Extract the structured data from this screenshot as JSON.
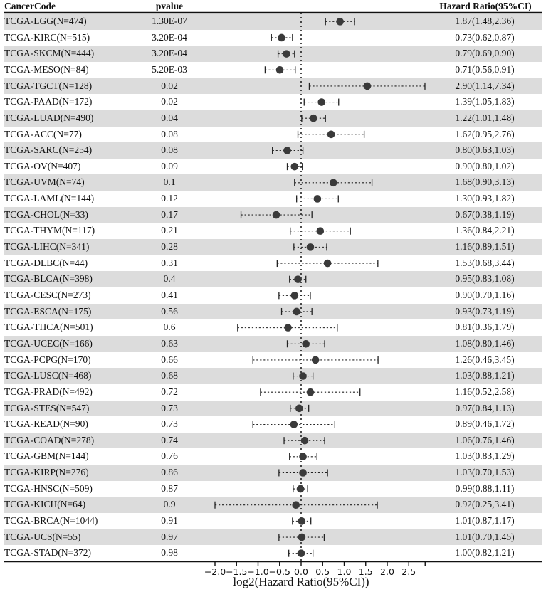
{
  "headers": {
    "cancer_code": "CancerCode",
    "pvalue": "pvalue",
    "hazard_ratio": "Hazard Ratio(95%CI)"
  },
  "axis": {
    "title": "log2(Hazard Ratio(95%CI))",
    "ticks": [
      -2.0,
      -1.5,
      -1.0,
      -0.5,
      0.0,
      0.5,
      1.0,
      1.5,
      2.0,
      2.5,
      2.88
    ],
    "tick_labels": [
      "−2.0",
      "−1.5",
      "−1.0",
      "−0.5",
      "0.0",
      "0.5",
      "1.0",
      "1.5",
      "2.0",
      "2.5",
      ""
    ],
    "reference_line": 0
  },
  "colors": {
    "shade": "#dcdcdc",
    "marker": "#3a3a3a",
    "line": "#222222"
  },
  "chart_data": {
    "type": "forest",
    "title": "",
    "xlabel": "log2(Hazard Ratio(95%CI))",
    "ylabel": "",
    "xlim": [
      -2.0,
      2.9
    ],
    "grid": false,
    "legend": null,
    "categories": [
      "TCGA-LGG(N=474)",
      "TCGA-KIRC(N=515)",
      "TCGA-SKCM(N=444)",
      "TCGA-MESO(N=84)",
      "TCGA-TGCT(N=128)",
      "TCGA-PAAD(N=172)",
      "TCGA-LUAD(N=490)",
      "TCGA-ACC(N=77)",
      "TCGA-SARC(N=254)",
      "TCGA-OV(N=407)",
      "TCGA-UVM(N=74)",
      "TCGA-LAML(N=144)",
      "TCGA-CHOL(N=33)",
      "TCGA-THYM(N=117)",
      "TCGA-LIHC(N=341)",
      "TCGA-DLBC(N=44)",
      "TCGA-BLCA(N=398)",
      "TCGA-CESC(N=273)",
      "TCGA-ESCA(N=175)",
      "TCGA-THCA(N=501)",
      "TCGA-UCEC(N=166)",
      "TCGA-PCPG(N=170)",
      "TCGA-LUSC(N=468)",
      "TCGA-PRAD(N=492)",
      "TCGA-STES(N=547)",
      "TCGA-READ(N=90)",
      "TCGA-COAD(N=278)",
      "TCGA-GBM(N=144)",
      "TCGA-KIRP(N=276)",
      "TCGA-HNSC(N=509)",
      "TCGA-KICH(N=64)",
      "TCGA-BRCA(N=1044)",
      "TCGA-UCS(N=55)",
      "TCGA-STAD(N=372)"
    ],
    "rows": [
      {
        "code": "TCGA-LGG(N=474)",
        "pvalue": "1.30E-07",
        "hr": 1.87,
        "lo": 1.48,
        "hi": 2.36,
        "label": "1.87(1.48,2.36)"
      },
      {
        "code": "TCGA-KIRC(N=515)",
        "pvalue": "3.20E-04",
        "hr": 0.73,
        "lo": 0.62,
        "hi": 0.87,
        "label": "0.73(0.62,0.87)"
      },
      {
        "code": "TCGA-SKCM(N=444)",
        "pvalue": "3.20E-04",
        "hr": 0.79,
        "lo": 0.69,
        "hi": 0.9,
        "label": "0.79(0.69,0.90)"
      },
      {
        "code": "TCGA-MESO(N=84)",
        "pvalue": "5.20E-03",
        "hr": 0.71,
        "lo": 0.56,
        "hi": 0.91,
        "label": "0.71(0.56,0.91)"
      },
      {
        "code": "TCGA-TGCT(N=128)",
        "pvalue": "0.02",
        "hr": 2.9,
        "lo": 1.14,
        "hi": 7.34,
        "label": "2.90(1.14,7.34)"
      },
      {
        "code": "TCGA-PAAD(N=172)",
        "pvalue": "0.02",
        "hr": 1.39,
        "lo": 1.05,
        "hi": 1.83,
        "label": "1.39(1.05,1.83)"
      },
      {
        "code": "TCGA-LUAD(N=490)",
        "pvalue": "0.04",
        "hr": 1.22,
        "lo": 1.01,
        "hi": 1.48,
        "label": "1.22(1.01,1.48)"
      },
      {
        "code": "TCGA-ACC(N=77)",
        "pvalue": "0.08",
        "hr": 1.62,
        "lo": 0.95,
        "hi": 2.76,
        "label": "1.62(0.95,2.76)"
      },
      {
        "code": "TCGA-SARC(N=254)",
        "pvalue": "0.08",
        "hr": 0.8,
        "lo": 0.63,
        "hi": 1.03,
        "label": "0.80(0.63,1.03)"
      },
      {
        "code": "TCGA-OV(N=407)",
        "pvalue": "0.09",
        "hr": 0.9,
        "lo": 0.8,
        "hi": 1.02,
        "label": "0.90(0.80,1.02)"
      },
      {
        "code": "TCGA-UVM(N=74)",
        "pvalue": "0.1",
        "hr": 1.68,
        "lo": 0.9,
        "hi": 3.13,
        "label": "1.68(0.90,3.13)"
      },
      {
        "code": "TCGA-LAML(N=144)",
        "pvalue": "0.12",
        "hr": 1.3,
        "lo": 0.93,
        "hi": 1.82,
        "label": "1.30(0.93,1.82)"
      },
      {
        "code": "TCGA-CHOL(N=33)",
        "pvalue": "0.17",
        "hr": 0.67,
        "lo": 0.38,
        "hi": 1.19,
        "label": "0.67(0.38,1.19)"
      },
      {
        "code": "TCGA-THYM(N=117)",
        "pvalue": "0.21",
        "hr": 1.36,
        "lo": 0.84,
        "hi": 2.21,
        "label": "1.36(0.84,2.21)"
      },
      {
        "code": "TCGA-LIHC(N=341)",
        "pvalue": "0.28",
        "hr": 1.16,
        "lo": 0.89,
        "hi": 1.51,
        "label": "1.16(0.89,1.51)"
      },
      {
        "code": "TCGA-DLBC(N=44)",
        "pvalue": "0.31",
        "hr": 1.53,
        "lo": 0.68,
        "hi": 3.44,
        "label": "1.53(0.68,3.44)"
      },
      {
        "code": "TCGA-BLCA(N=398)",
        "pvalue": "0.4",
        "hr": 0.95,
        "lo": 0.83,
        "hi": 1.08,
        "label": "0.95(0.83,1.08)"
      },
      {
        "code": "TCGA-CESC(N=273)",
        "pvalue": "0.41",
        "hr": 0.9,
        "lo": 0.7,
        "hi": 1.16,
        "label": "0.90(0.70,1.16)"
      },
      {
        "code": "TCGA-ESCA(N=175)",
        "pvalue": "0.56",
        "hr": 0.93,
        "lo": 0.73,
        "hi": 1.19,
        "label": "0.93(0.73,1.19)"
      },
      {
        "code": "TCGA-THCA(N=501)",
        "pvalue": "0.6",
        "hr": 0.81,
        "lo": 0.36,
        "hi": 1.79,
        "label": "0.81(0.36,1.79)"
      },
      {
        "code": "TCGA-UCEC(N=166)",
        "pvalue": "0.63",
        "hr": 1.08,
        "lo": 0.8,
        "hi": 1.46,
        "label": "1.08(0.80,1.46)"
      },
      {
        "code": "TCGA-PCPG(N=170)",
        "pvalue": "0.66",
        "hr": 1.26,
        "lo": 0.46,
        "hi": 3.45,
        "label": "1.26(0.46,3.45)"
      },
      {
        "code": "TCGA-LUSC(N=468)",
        "pvalue": "0.68",
        "hr": 1.03,
        "lo": 0.88,
        "hi": 1.21,
        "label": "1.03(0.88,1.21)"
      },
      {
        "code": "TCGA-PRAD(N=492)",
        "pvalue": "0.72",
        "hr": 1.16,
        "lo": 0.52,
        "hi": 2.58,
        "label": "1.16(0.52,2.58)"
      },
      {
        "code": "TCGA-STES(N=547)",
        "pvalue": "0.73",
        "hr": 0.97,
        "lo": 0.84,
        "hi": 1.13,
        "label": "0.97(0.84,1.13)"
      },
      {
        "code": "TCGA-READ(N=90)",
        "pvalue": "0.73",
        "hr": 0.89,
        "lo": 0.46,
        "hi": 1.72,
        "label": "0.89(0.46,1.72)"
      },
      {
        "code": "TCGA-COAD(N=278)",
        "pvalue": "0.74",
        "hr": 1.06,
        "lo": 0.76,
        "hi": 1.46,
        "label": "1.06(0.76,1.46)"
      },
      {
        "code": "TCGA-GBM(N=144)",
        "pvalue": "0.76",
        "hr": 1.03,
        "lo": 0.83,
        "hi": 1.29,
        "label": "1.03(0.83,1.29)"
      },
      {
        "code": "TCGA-KIRP(N=276)",
        "pvalue": "0.86",
        "hr": 1.03,
        "lo": 0.7,
        "hi": 1.53,
        "label": "1.03(0.70,1.53)"
      },
      {
        "code": "TCGA-HNSC(N=509)",
        "pvalue": "0.87",
        "hr": 0.99,
        "lo": 0.88,
        "hi": 1.11,
        "label": "0.99(0.88,1.11)"
      },
      {
        "code": "TCGA-KICH(N=64)",
        "pvalue": "0.9",
        "hr": 0.92,
        "lo": 0.25,
        "hi": 3.41,
        "label": "0.92(0.25,3.41)"
      },
      {
        "code": "TCGA-BRCA(N=1044)",
        "pvalue": "0.91",
        "hr": 1.01,
        "lo": 0.87,
        "hi": 1.17,
        "label": "1.01(0.87,1.17)"
      },
      {
        "code": "TCGA-UCS(N=55)",
        "pvalue": "0.97",
        "hr": 1.01,
        "lo": 0.7,
        "hi": 1.45,
        "label": "1.01(0.70,1.45)"
      },
      {
        "code": "TCGA-STAD(N=372)",
        "pvalue": "0.98",
        "hr": 1.0,
        "lo": 0.82,
        "hi": 1.21,
        "label": "1.00(0.82,1.21)"
      }
    ]
  }
}
